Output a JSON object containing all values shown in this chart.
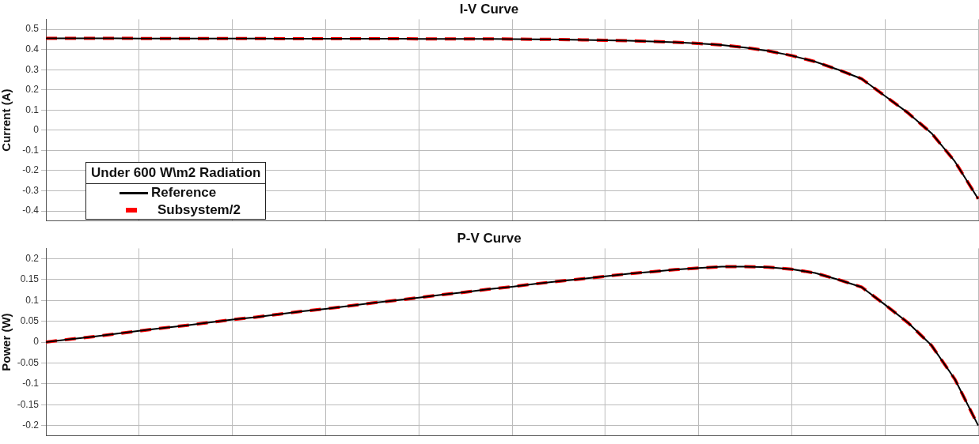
{
  "chart_data": [
    {
      "type": "line",
      "title": "I-V Curve",
      "ylabel": "Current (A)",
      "legend_title": "Under 600 W\\m2 Radiation",
      "legend": "bottom left",
      "grid": true,
      "tick_labels": "y",
      "marker": "none",
      "categories": [
        null,
        null,
        null,
        null,
        null,
        null,
        null,
        null,
        null,
        null,
        null,
        null,
        null,
        null,
        null,
        null,
        null,
        null,
        null,
        null,
        null,
        null,
        null,
        null,
        null,
        null,
        null,
        null,
        null,
        null,
        null,
        null,
        null,
        null,
        null,
        null,
        null,
        null,
        null,
        null,
        null
      ],
      "ylim": [
        -0.45,
        0.55
      ],
      "yticks": [
        -0.4,
        -0.3,
        -0.2,
        -0.1,
        0,
        0.1,
        0.2,
        0.3,
        0.4,
        0.5
      ],
      "series": [
        {
          "name": "Reference",
          "color": "#000000",
          "line_style": "solid",
          "values": [
            0.456,
            0.456,
            0.456,
            0.456,
            0.455,
            0.455,
            0.455,
            0.455,
            0.455,
            0.455,
            0.454,
            0.454,
            0.454,
            0.454,
            0.454,
            0.454,
            0.453,
            0.453,
            0.453,
            0.453,
            0.452,
            0.451,
            0.45,
            0.448,
            0.446,
            0.444,
            0.44,
            0.436,
            0.43,
            0.422,
            0.41,
            0.393,
            0.37,
            0.34,
            0.3,
            0.255,
            0.17,
            0.085,
            -0.015,
            -0.155,
            -0.34
          ]
        },
        {
          "name": "Subsystem/2",
          "color": "#ff0000",
          "line_style": "dashed",
          "values": [
            0.456,
            0.456,
            0.456,
            0.456,
            0.455,
            0.455,
            0.455,
            0.455,
            0.455,
            0.455,
            0.454,
            0.454,
            0.454,
            0.454,
            0.454,
            0.454,
            0.453,
            0.453,
            0.453,
            0.453,
            0.452,
            0.451,
            0.45,
            0.448,
            0.446,
            0.444,
            0.44,
            0.436,
            0.43,
            0.422,
            0.41,
            0.393,
            0.37,
            0.34,
            0.3,
            0.255,
            0.17,
            0.085,
            -0.015,
            -0.155,
            -0.34
          ]
        }
      ]
    },
    {
      "type": "line",
      "title": "P-V Curve",
      "ylabel": "Power (W)",
      "grid": true,
      "tick_labels": "y",
      "marker": "none",
      "categories": [
        null,
        null,
        null,
        null,
        null,
        null,
        null,
        null,
        null,
        null,
        null,
        null,
        null,
        null,
        null,
        null,
        null,
        null,
        null,
        null,
        null,
        null,
        null,
        null,
        null,
        null,
        null,
        null,
        null,
        null,
        null,
        null,
        null,
        null,
        null,
        null,
        null,
        null,
        null,
        null,
        null
      ],
      "ylim": [
        -0.225,
        0.225
      ],
      "yticks": [
        -0.2,
        -0.15,
        -0.1,
        -0.05,
        0,
        0.05,
        0.1,
        0.15,
        0.2
      ],
      "series": [
        {
          "color": "#000000",
          "line_style": "solid",
          "values": [
            0,
            0.007,
            0.013,
            0.02,
            0.027,
            0.034,
            0.04,
            0.047,
            0.054,
            0.06,
            0.067,
            0.074,
            0.08,
            0.087,
            0.094,
            0.1,
            0.107,
            0.114,
            0.12,
            0.127,
            0.133,
            0.14,
            0.146,
            0.152,
            0.158,
            0.164,
            0.169,
            0.174,
            0.178,
            0.181,
            0.181,
            0.18,
            0.175,
            0.166,
            0.15,
            0.132,
            0.09,
            0.046,
            -0.008,
            -0.089,
            -0.2
          ]
        },
        {
          "color": "#ff0000",
          "line_style": "dashed",
          "values": [
            0,
            0.007,
            0.013,
            0.02,
            0.027,
            0.034,
            0.04,
            0.047,
            0.054,
            0.06,
            0.067,
            0.074,
            0.08,
            0.087,
            0.094,
            0.1,
            0.107,
            0.114,
            0.12,
            0.127,
            0.133,
            0.14,
            0.146,
            0.152,
            0.158,
            0.164,
            0.169,
            0.174,
            0.178,
            0.181,
            0.181,
            0.18,
            0.175,
            0.166,
            0.15,
            0.132,
            0.09,
            0.046,
            -0.008,
            -0.089,
            -0.2
          ]
        }
      ]
    }
  ]
}
